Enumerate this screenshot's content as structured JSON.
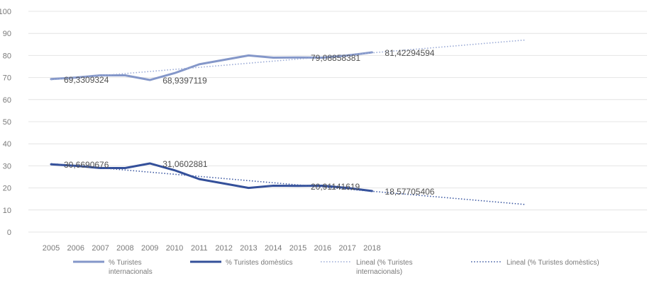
{
  "chart_data": {
    "type": "line",
    "categories": [
      "2005",
      "2006",
      "2007",
      "2008",
      "2009",
      "2010",
      "2011",
      "2012",
      "2013",
      "2014",
      "2015",
      "2016",
      "2017",
      "2018"
    ],
    "ylim": [
      0,
      100
    ],
    "yticks": [
      "0",
      "10",
      "20",
      "30",
      "40",
      "50",
      "60",
      "70",
      "80",
      "90",
      "100"
    ],
    "grid": true,
    "legend_position": "bottom",
    "series": [
      {
        "name": "% Turistes internacionals",
        "legend_lines": [
          "% Turistes",
          "internacionals"
        ],
        "color": "#8497c9",
        "style": "solid",
        "values": [
          69.3,
          70.0,
          71.0,
          71.0,
          68.9,
          72.0,
          76.0,
          78.0,
          80.0,
          79.0,
          79.1,
          79.0,
          80.0,
          81.4
        ]
      },
      {
        "name": "% Turistes domèstics",
        "legend_lines": [
          "% Turistes domèstics"
        ],
        "color": "#34509a",
        "style": "solid",
        "values": [
          30.7,
          30.0,
          29.0,
          29.0,
          31.1,
          28.0,
          24.0,
          22.0,
          20.0,
          21.0,
          20.9,
          21.0,
          20.0,
          18.6
        ]
      },
      {
        "name": "Lineal (% Turistes internacionals)",
        "legend_lines": [
          "Lineal (% Turistes",
          "internacionals)"
        ],
        "color": "#9aaad6",
        "style": "dotted",
        "trend_from": [
          0,
          69.0
        ],
        "trend_to": [
          19.2,
          87.0
        ]
      },
      {
        "name": "Lineal (% Turistes domèstics)",
        "legend_lines": [
          "Lineal (% Turistes domèstics)"
        ],
        "color": "#3e5aa3",
        "style": "dotted",
        "trend_from": [
          0,
          31.0
        ],
        "trend_to": [
          19.2,
          12.5
        ]
      }
    ],
    "data_labels": [
      {
        "series": 0,
        "index": 0,
        "text": "69,3309324"
      },
      {
        "series": 0,
        "index": 4,
        "text": "68,9397119"
      },
      {
        "series": 0,
        "index": 10,
        "text": "79,08858381"
      },
      {
        "series": 0,
        "index": 13,
        "text": "81,42294594"
      },
      {
        "series": 1,
        "index": 0,
        "text": "30,6690676"
      },
      {
        "series": 1,
        "index": 4,
        "text": "31,0602881"
      },
      {
        "series": 1,
        "index": 10,
        "text": "20,91141619"
      },
      {
        "series": 1,
        "index": 13,
        "text": "18,57705406"
      }
    ]
  }
}
